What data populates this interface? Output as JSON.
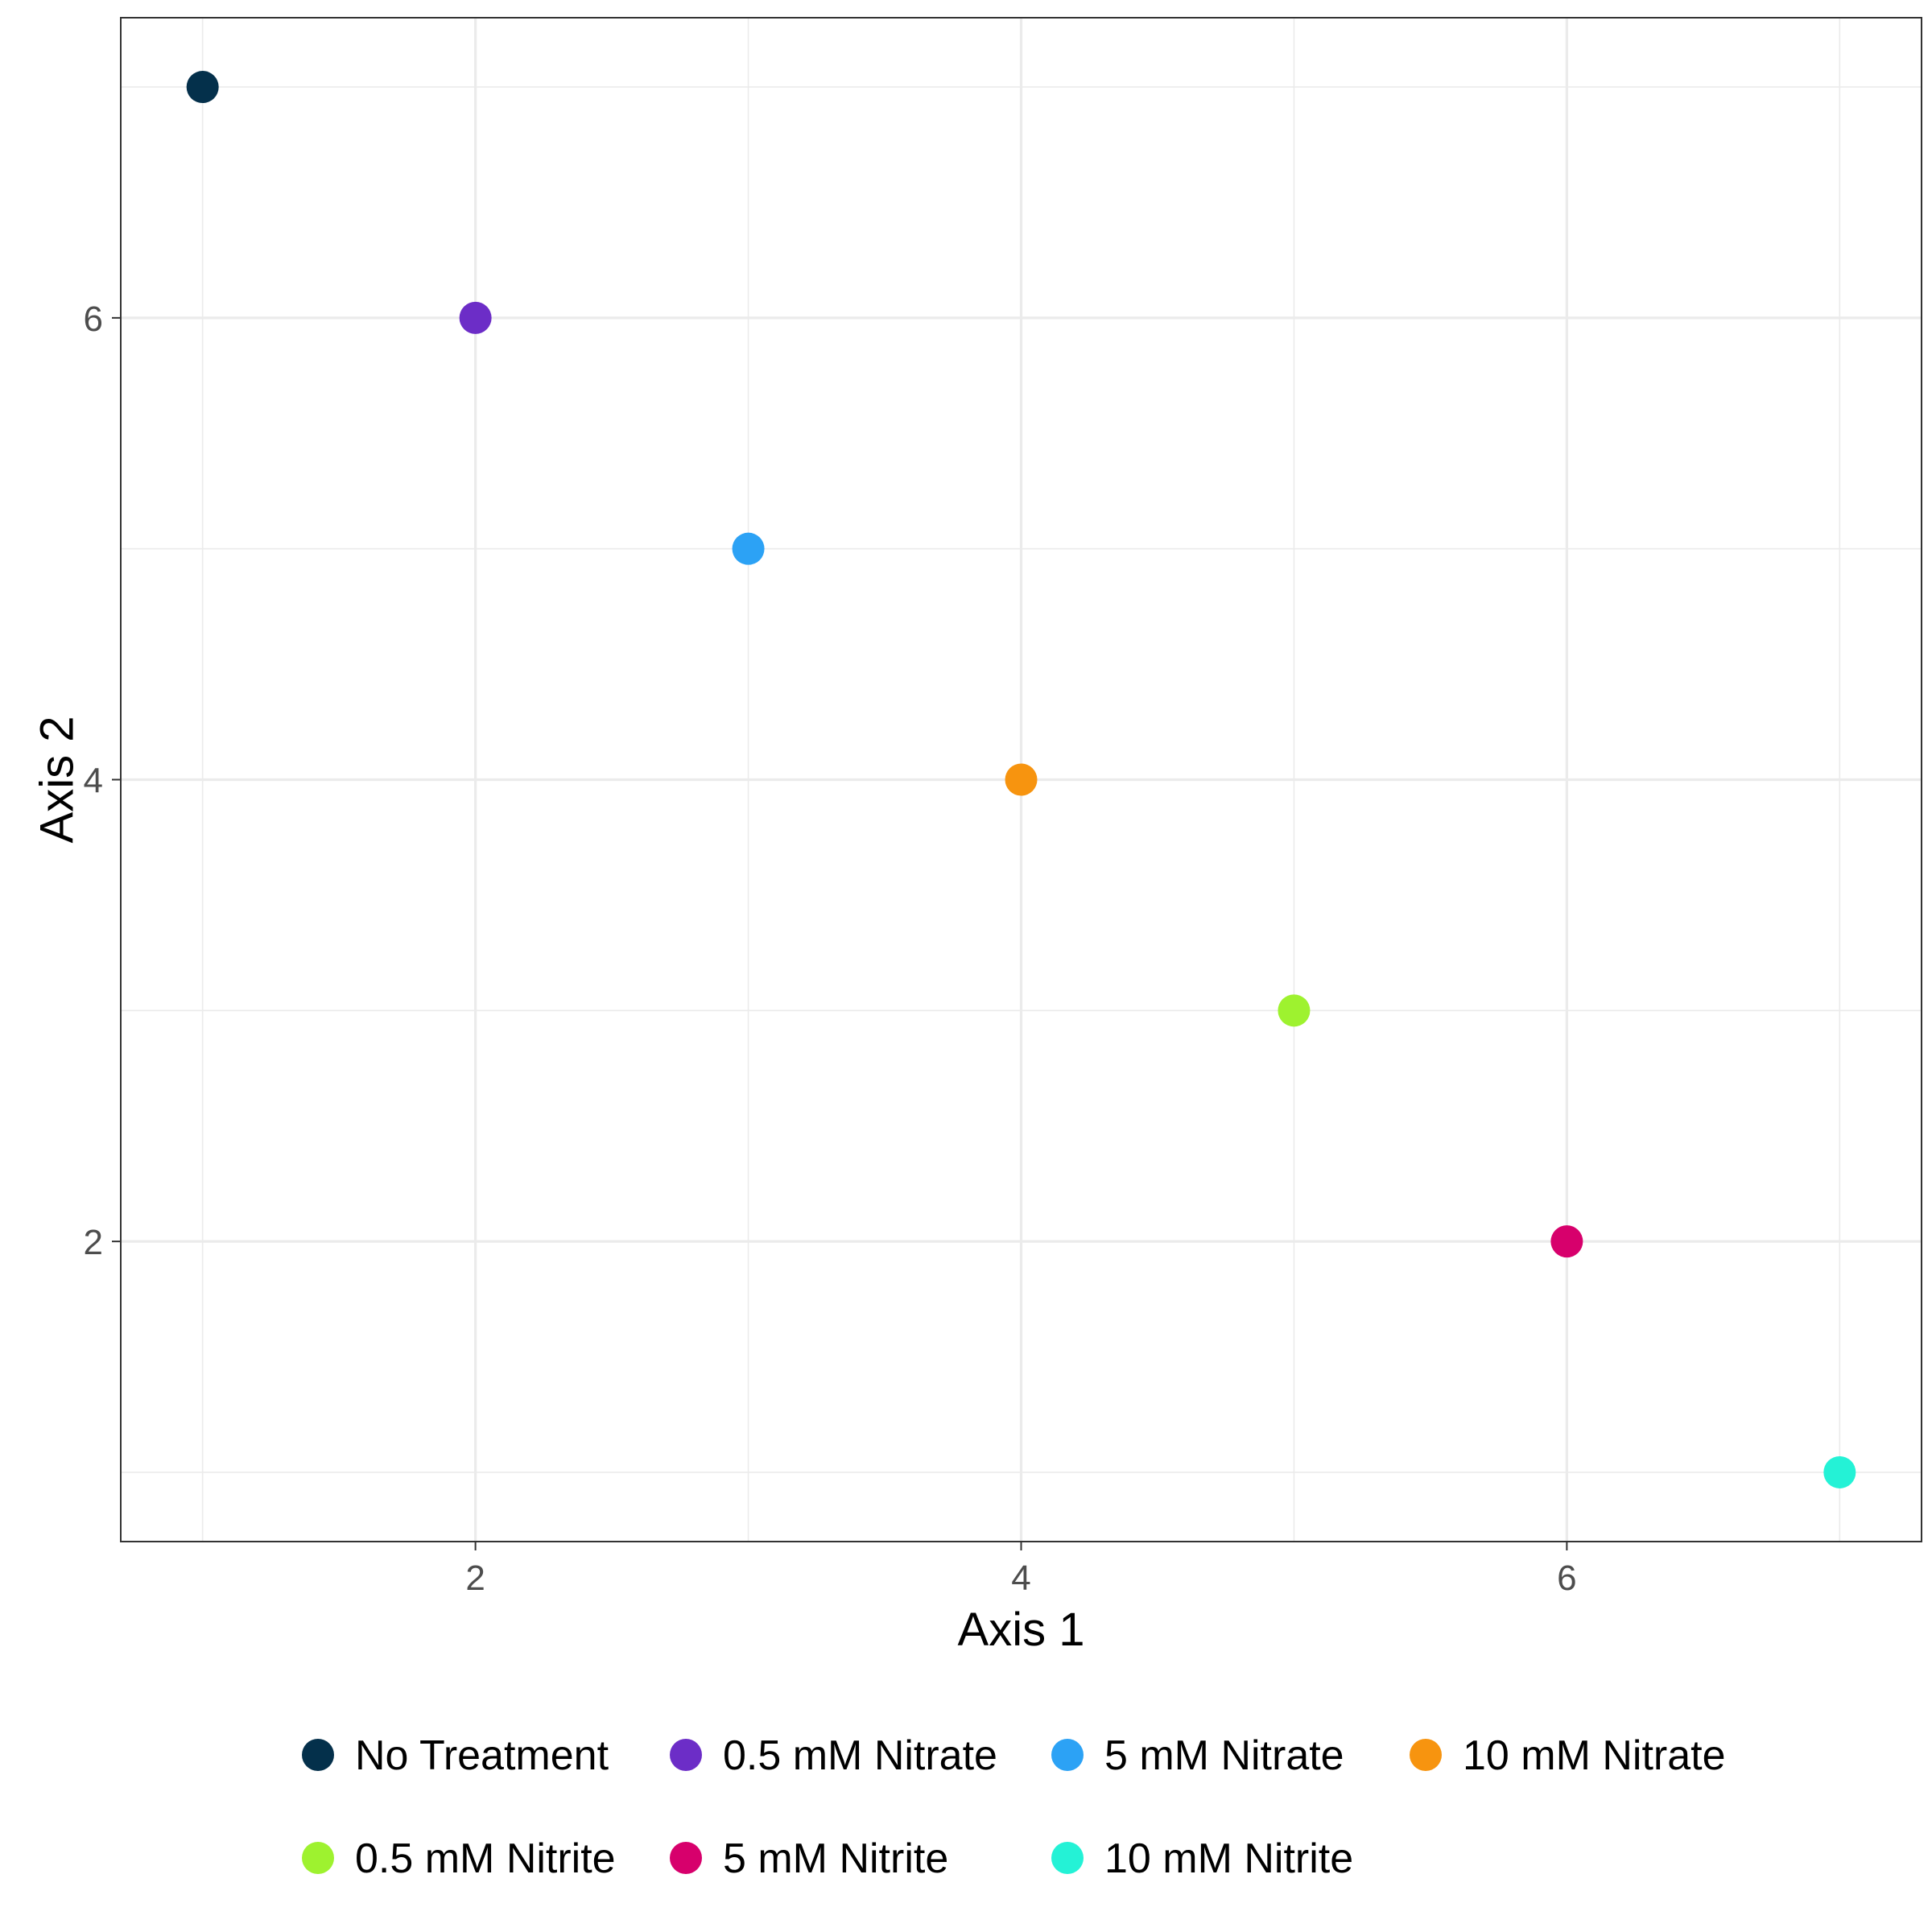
{
  "chart_data": {
    "type": "scatter",
    "xlabel": "Axis 1",
    "ylabel": "Axis 2",
    "xlim": [
      0.7,
      7.3
    ],
    "ylim": [
      0.7,
      7.3
    ],
    "x_ticks": [
      "2",
      "4",
      "6"
    ],
    "y_ticks": [
      "2",
      "4",
      "6"
    ],
    "grid": true,
    "legend_position": "bottom",
    "points": [
      {
        "label": "No Treatment",
        "x": 1,
        "y": 7,
        "color": "#04304B"
      },
      {
        "label": "0.5 mM Nitrate",
        "x": 2,
        "y": 6,
        "color": "#6C2DC7"
      },
      {
        "label": "5 mM Nitrate",
        "x": 3,
        "y": 5,
        "color": "#2CA2F5"
      },
      {
        "label": "10 mM Nitrate",
        "x": 4,
        "y": 4,
        "color": "#F7940F"
      },
      {
        "label": "0.5 mM Nitrite",
        "x": 5,
        "y": 3,
        "color": "#9EF22F"
      },
      {
        "label": "5 mM Nitrite",
        "x": 6,
        "y": 2,
        "color": "#D7006C"
      },
      {
        "label": "10 mM Nitrite",
        "x": 7,
        "y": 1,
        "color": "#24F2D6"
      }
    ]
  }
}
